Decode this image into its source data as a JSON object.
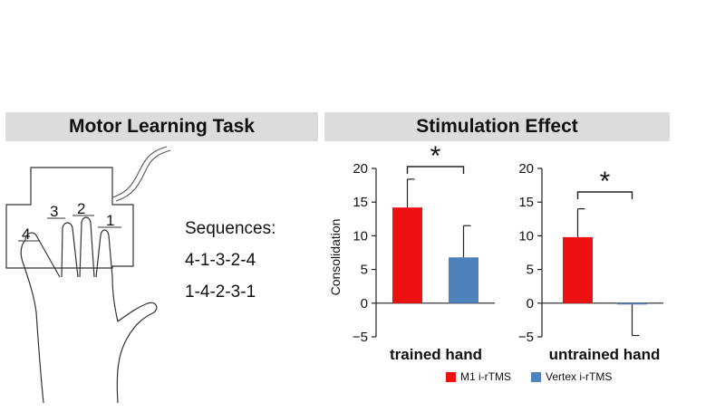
{
  "left_panel": {
    "title": "Motor Learning Task",
    "fingers": [
      "4",
      "3",
      "2",
      "1"
    ],
    "sequences_label": "Sequences:",
    "sequences": [
      "4-1-3-2-4",
      "1-4-2-3-1"
    ]
  },
  "right_panel": {
    "title": "Stimulation Effect"
  },
  "colors": {
    "m1": "#ee1111",
    "vertex": "#4f81bd"
  },
  "chart_data": [
    {
      "type": "bar",
      "xlabel": "trained hand",
      "ylabel": "Consolidation",
      "ylim": [
        -5,
        20
      ],
      "yticks": [
        -5,
        0,
        5,
        10,
        15,
        20
      ],
      "categories": [
        "M1 i-rTMS",
        "Vertex i-rTMS"
      ],
      "values": [
        14.2,
        6.8
      ],
      "errors": [
        4.2,
        4.7
      ],
      "significance": "*"
    },
    {
      "type": "bar",
      "xlabel": "untrained hand",
      "ylabel": "",
      "ylim": [
        -5,
        20
      ],
      "yticks": [
        -5,
        0,
        5,
        10,
        15,
        20
      ],
      "categories": [
        "M1 i-rTMS",
        "Vertex i-rTMS"
      ],
      "values": [
        9.8,
        -0.2
      ],
      "errors": [
        4.2,
        4.6
      ],
      "significance": "*"
    }
  ],
  "legend": {
    "items": [
      {
        "label": "M1 i-rTMS",
        "color": "#ee1111"
      },
      {
        "label": "Vertex i-rTMS",
        "color": "#4f81bd"
      }
    ]
  }
}
